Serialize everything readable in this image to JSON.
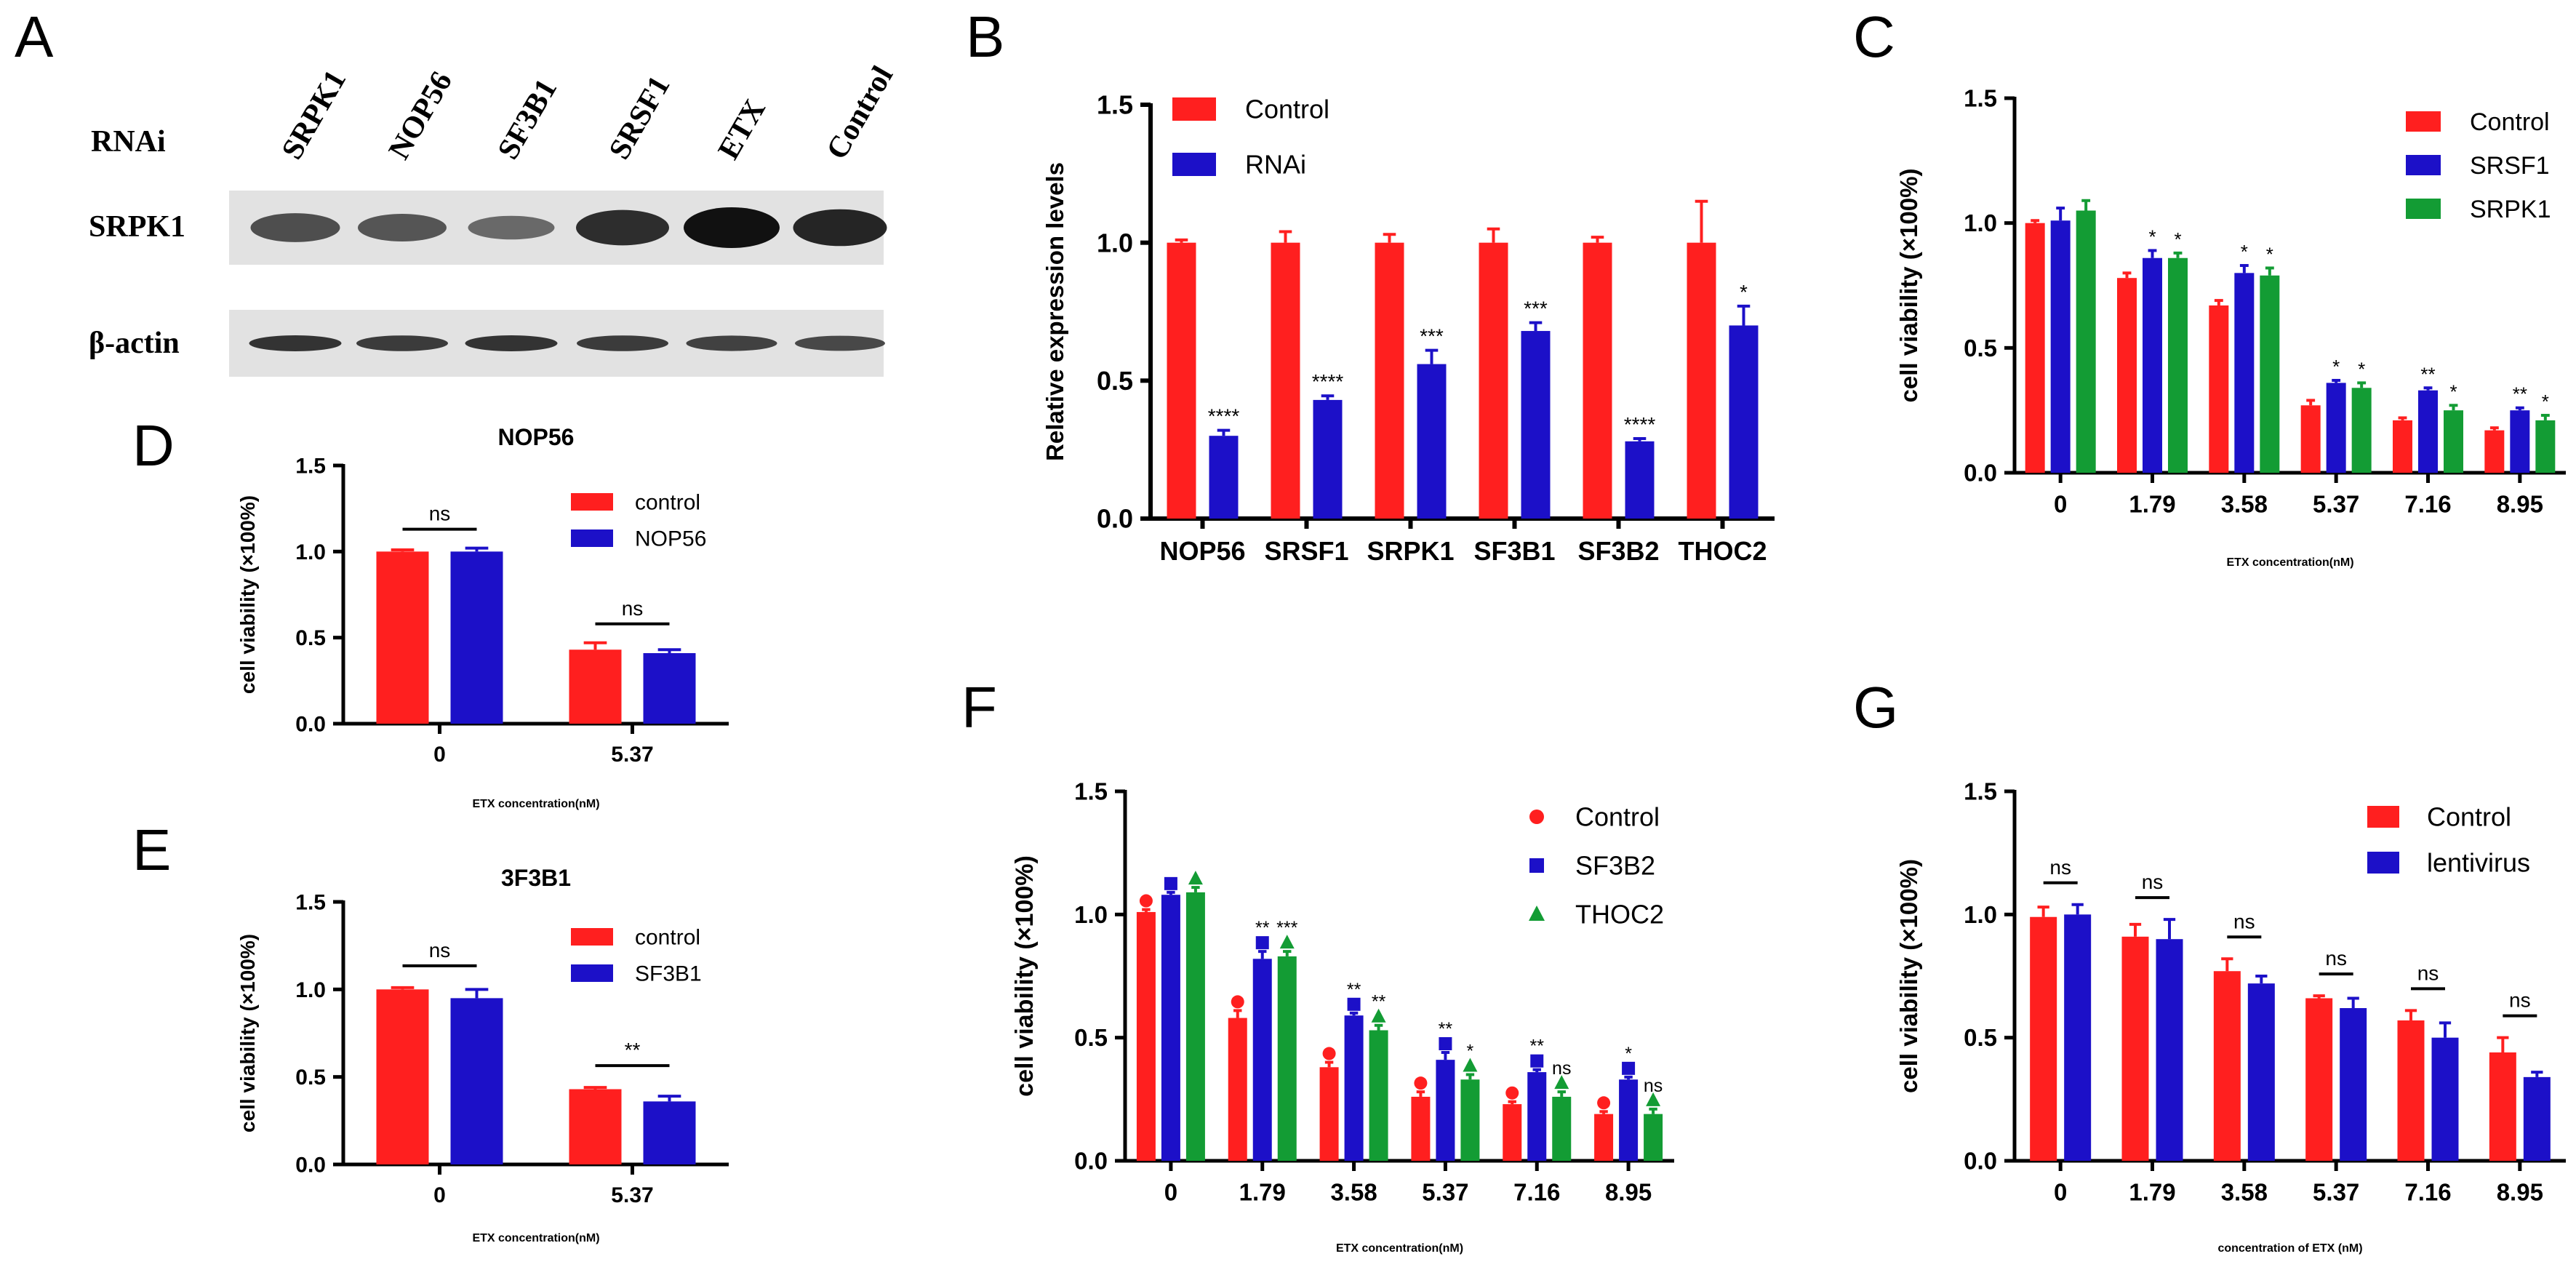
{
  "colors": {
    "control": "#ff1f1f",
    "blue": "#1c10c8",
    "green": "#139c34",
    "axis": "#000000"
  },
  "panel_labels": [
    "A",
    "B",
    "C",
    "D",
    "E",
    "F",
    "G"
  ],
  "western_blot": {
    "row_label": "RNAi",
    "lanes": [
      "SRPK1",
      "NOP56",
      "SF3B1",
      "SRSF1",
      "ETX",
      "Control"
    ],
    "bands": [
      "SRPK1",
      "β-actin"
    ],
    "intensity": {
      "SRPK1": [
        0.55,
        0.5,
        0.35,
        0.8,
        1.0,
        0.85
      ],
      "β-actin": [
        0.75,
        0.7,
        0.75,
        0.7,
        0.65,
        0.6
      ]
    }
  },
  "chart_data": [
    {
      "id": "B",
      "type": "bar",
      "title": "",
      "categories": [
        "NOP56",
        "SRSF1",
        "SRPK1",
        "SF3B1",
        "SF3B2",
        "THOC2"
      ],
      "xlabel": "",
      "ylabel": "Relative expression levels",
      "ylim": [
        0,
        1.5
      ],
      "yticks": [
        "0.0",
        "0.5",
        "1.0",
        "1.5"
      ],
      "legend": "top-left",
      "series": [
        {
          "name": "Control",
          "color": "#ff1f1f",
          "values": [
            1.0,
            1.0,
            1.0,
            1.0,
            1.0,
            1.0
          ],
          "errors": [
            0.01,
            0.04,
            0.03,
            0.05,
            0.02,
            0.15
          ],
          "sig": [
            "",
            "",
            "",
            "",
            "",
            ""
          ]
        },
        {
          "name": "RNAi",
          "color": "#1c10c8",
          "values": [
            0.3,
            0.43,
            0.56,
            0.68,
            0.28,
            0.7
          ],
          "errors": [
            0.02,
            0.015,
            0.05,
            0.03,
            0.01,
            0.07
          ],
          "sig": [
            "****",
            "****",
            "***",
            "***",
            "****",
            "*"
          ]
        }
      ]
    },
    {
      "id": "C",
      "type": "bar",
      "title": "",
      "categories": [
        "0",
        "1.79",
        "3.58",
        "5.37",
        "7.16",
        "8.95"
      ],
      "xlabel": "ETX concentration(nM)",
      "ylabel": "cell viability (×100%)",
      "ylim": [
        0,
        1.5
      ],
      "yticks": [
        "0.0",
        "0.5",
        "1.0",
        "1.5"
      ],
      "legend": "top-right",
      "series": [
        {
          "name": "Control",
          "color": "#ff1f1f",
          "values": [
            1.0,
            0.78,
            0.67,
            0.27,
            0.21,
            0.17
          ],
          "errors": [
            0.01,
            0.02,
            0.02,
            0.02,
            0.01,
            0.01
          ],
          "sig": [
            "",
            "",
            "",
            "",
            "",
            ""
          ]
        },
        {
          "name": "SRSF1",
          "color": "#1c10c8",
          "values": [
            1.01,
            0.86,
            0.8,
            0.36,
            0.33,
            0.25
          ],
          "errors": [
            0.05,
            0.03,
            0.03,
            0.01,
            0.01,
            0.01
          ],
          "sig": [
            "",
            "*",
            "*",
            "*",
            "**",
            "**"
          ]
        },
        {
          "name": "SRPK1",
          "color": "#139c34",
          "values": [
            1.05,
            0.86,
            0.79,
            0.34,
            0.25,
            0.21
          ],
          "errors": [
            0.04,
            0.02,
            0.03,
            0.02,
            0.02,
            0.02
          ],
          "sig": [
            "",
            "*",
            "*",
            "*",
            "*",
            "*"
          ]
        }
      ]
    },
    {
      "id": "D",
      "type": "bar",
      "title": "NOP56",
      "categories": [
        "0",
        "5.37"
      ],
      "xlabel": "ETX concentration(nM)",
      "ylabel": "cell viability (×100%)",
      "ylim": [
        0,
        1.5
      ],
      "yticks": [
        "0.0",
        "0.5",
        "1.0",
        "1.5"
      ],
      "legend": "top-right",
      "brackets": [
        "ns",
        "ns"
      ],
      "series": [
        {
          "name": "control",
          "color": "#ff1f1f",
          "values": [
            1.0,
            0.43
          ],
          "errors": [
            0.01,
            0.04
          ],
          "sig": [
            "",
            ""
          ]
        },
        {
          "name": "NOP56",
          "color": "#1c10c8",
          "values": [
            1.0,
            0.41
          ],
          "errors": [
            0.02,
            0.02
          ],
          "sig": [
            "",
            ""
          ]
        }
      ]
    },
    {
      "id": "E",
      "type": "bar",
      "title": "3F3B1",
      "categories": [
        "0",
        "5.37"
      ],
      "xlabel": "ETX concentration(nM)",
      "ylabel": "cell viability (×100%)",
      "ylim": [
        0,
        1.5
      ],
      "yticks": [
        "0.0",
        "0.5",
        "1.0",
        "1.5"
      ],
      "legend": "top-right",
      "brackets": [
        "ns",
        "**"
      ],
      "series": [
        {
          "name": "control",
          "color": "#ff1f1f",
          "values": [
            1.0,
            0.43
          ],
          "errors": [
            0.01,
            0.01
          ],
          "sig": [
            "",
            ""
          ]
        },
        {
          "name": "SF3B1",
          "color": "#1c10c8",
          "values": [
            0.95,
            0.36
          ],
          "errors": [
            0.05,
            0.03
          ],
          "sig": [
            "",
            ""
          ]
        }
      ]
    },
    {
      "id": "F",
      "type": "bar",
      "title": "",
      "categories": [
        "0",
        "1.79",
        "3.58",
        "5.37",
        "7.16",
        "8.95"
      ],
      "xlabel": "ETX concentration(nM)",
      "ylabel": "cell viability (×100%)",
      "ylim": [
        0,
        1.5
      ],
      "yticks": [
        "0.0",
        "0.5",
        "1.0",
        "1.5"
      ],
      "legend": "top-right",
      "series": [
        {
          "name": "Control",
          "color": "#ff1f1f",
          "marker": "circle",
          "values": [
            1.01,
            0.58,
            0.38,
            0.26,
            0.23,
            0.19
          ],
          "errors": [
            0.01,
            0.03,
            0.02,
            0.02,
            0.01,
            0.01
          ],
          "sig": [
            "",
            "",
            "",
            "",
            "",
            ""
          ]
        },
        {
          "name": "SF3B2",
          "color": "#1c10c8",
          "marker": "square",
          "values": [
            1.08,
            0.82,
            0.59,
            0.41,
            0.36,
            0.33
          ],
          "errors": [
            0.01,
            0.03,
            0.01,
            0.03,
            0.01,
            0.01
          ],
          "sig": [
            "",
            "**",
            "**",
            "**",
            "**",
            "*"
          ]
        },
        {
          "name": "THOC2",
          "color": "#139c34",
          "marker": "triangle",
          "values": [
            1.09,
            0.83,
            0.53,
            0.33,
            0.26,
            0.19
          ],
          "errors": [
            0.02,
            0.02,
            0.02,
            0.02,
            0.02,
            0.02
          ],
          "sig": [
            "",
            "***",
            "**",
            "*",
            "ns",
            "ns"
          ]
        }
      ]
    },
    {
      "id": "G",
      "type": "bar",
      "title": "",
      "categories": [
        "0",
        "1.79",
        "3.58",
        "5.37",
        "7.16",
        "8.95"
      ],
      "xlabel": "concentration of ETX (nM)",
      "ylabel": "cell viability (×100%)",
      "ylim": [
        0,
        1.5
      ],
      "yticks": [
        "0.0",
        "0.5",
        "1.0",
        "1.5"
      ],
      "legend": "top-right",
      "brackets": [
        "ns",
        "ns",
        "ns",
        "ns",
        "ns",
        "ns"
      ],
      "series": [
        {
          "name": "Control",
          "color": "#ff1f1f",
          "values": [
            0.99,
            0.91,
            0.77,
            0.66,
            0.57,
            0.44
          ],
          "errors": [
            0.04,
            0.05,
            0.05,
            0.01,
            0.04,
            0.06
          ],
          "sig": [
            "",
            "",
            "",
            "",
            "",
            ""
          ]
        },
        {
          "name": "lentivirus",
          "color": "#1c10c8",
          "values": [
            1.0,
            0.9,
            0.72,
            0.62,
            0.5,
            0.34
          ],
          "errors": [
            0.04,
            0.08,
            0.03,
            0.04,
            0.06,
            0.02
          ],
          "sig": [
            "",
            "",
            "",
            "",
            "",
            ""
          ]
        }
      ]
    }
  ]
}
